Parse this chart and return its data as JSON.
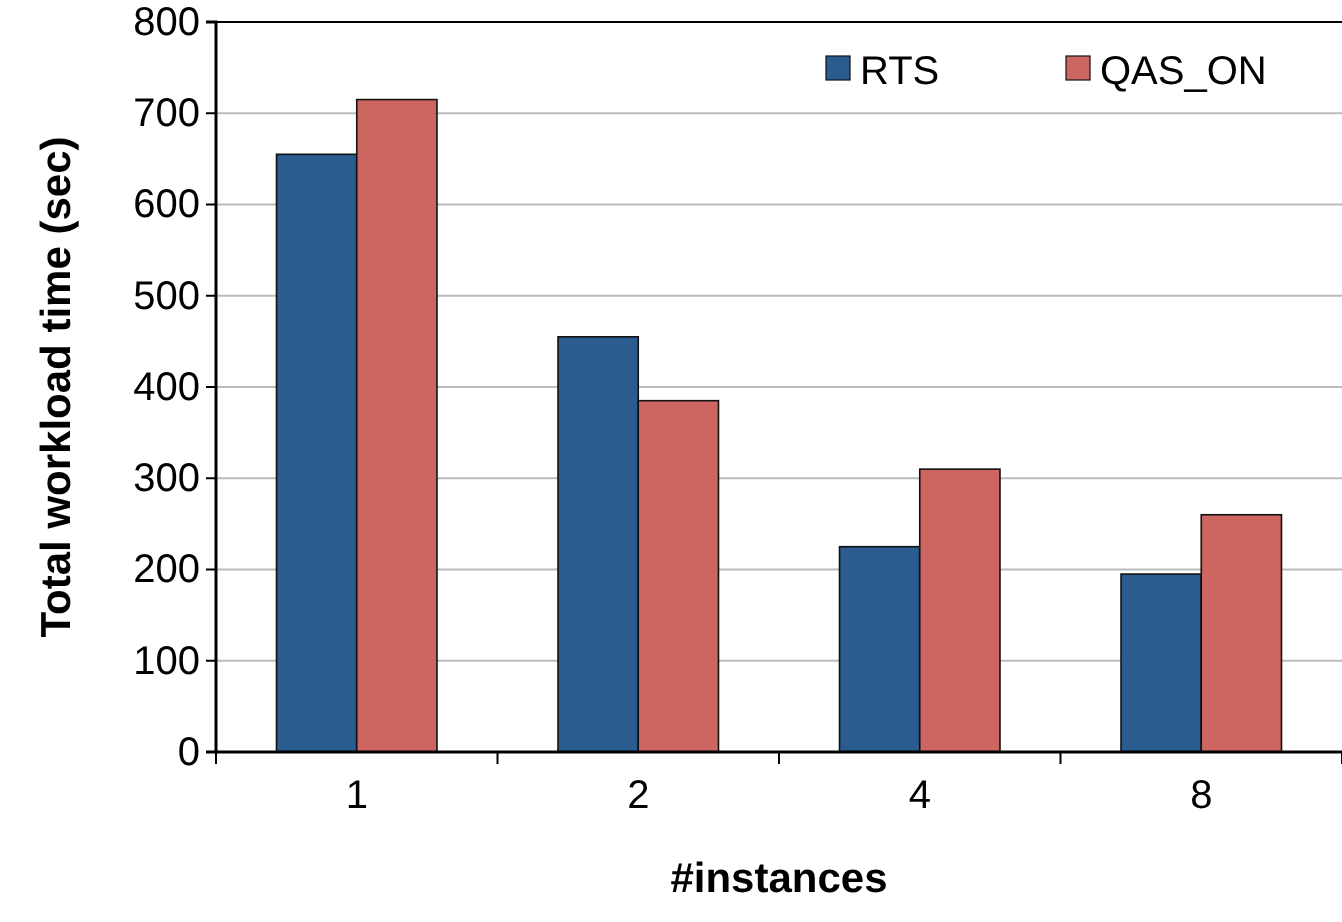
{
  "chart_data": {
    "type": "bar",
    "xlabel": "#instances",
    "ylabel": "Total workload time (sec)",
    "categories": [
      "1",
      "2",
      "4",
      "8"
    ],
    "series": [
      {
        "name": "RTS",
        "color": "#2a5c8f",
        "values": [
          655,
          455,
          225,
          195
        ]
      },
      {
        "name": "QAS_ON",
        "color": "#cd6660",
        "values": [
          715,
          385,
          310,
          260
        ]
      }
    ],
    "ylim": [
      0,
      800
    ],
    "yticks": [
      0,
      100,
      200,
      300,
      400,
      500,
      600,
      700,
      800
    ],
    "grid": "y",
    "legend": "top right"
  }
}
